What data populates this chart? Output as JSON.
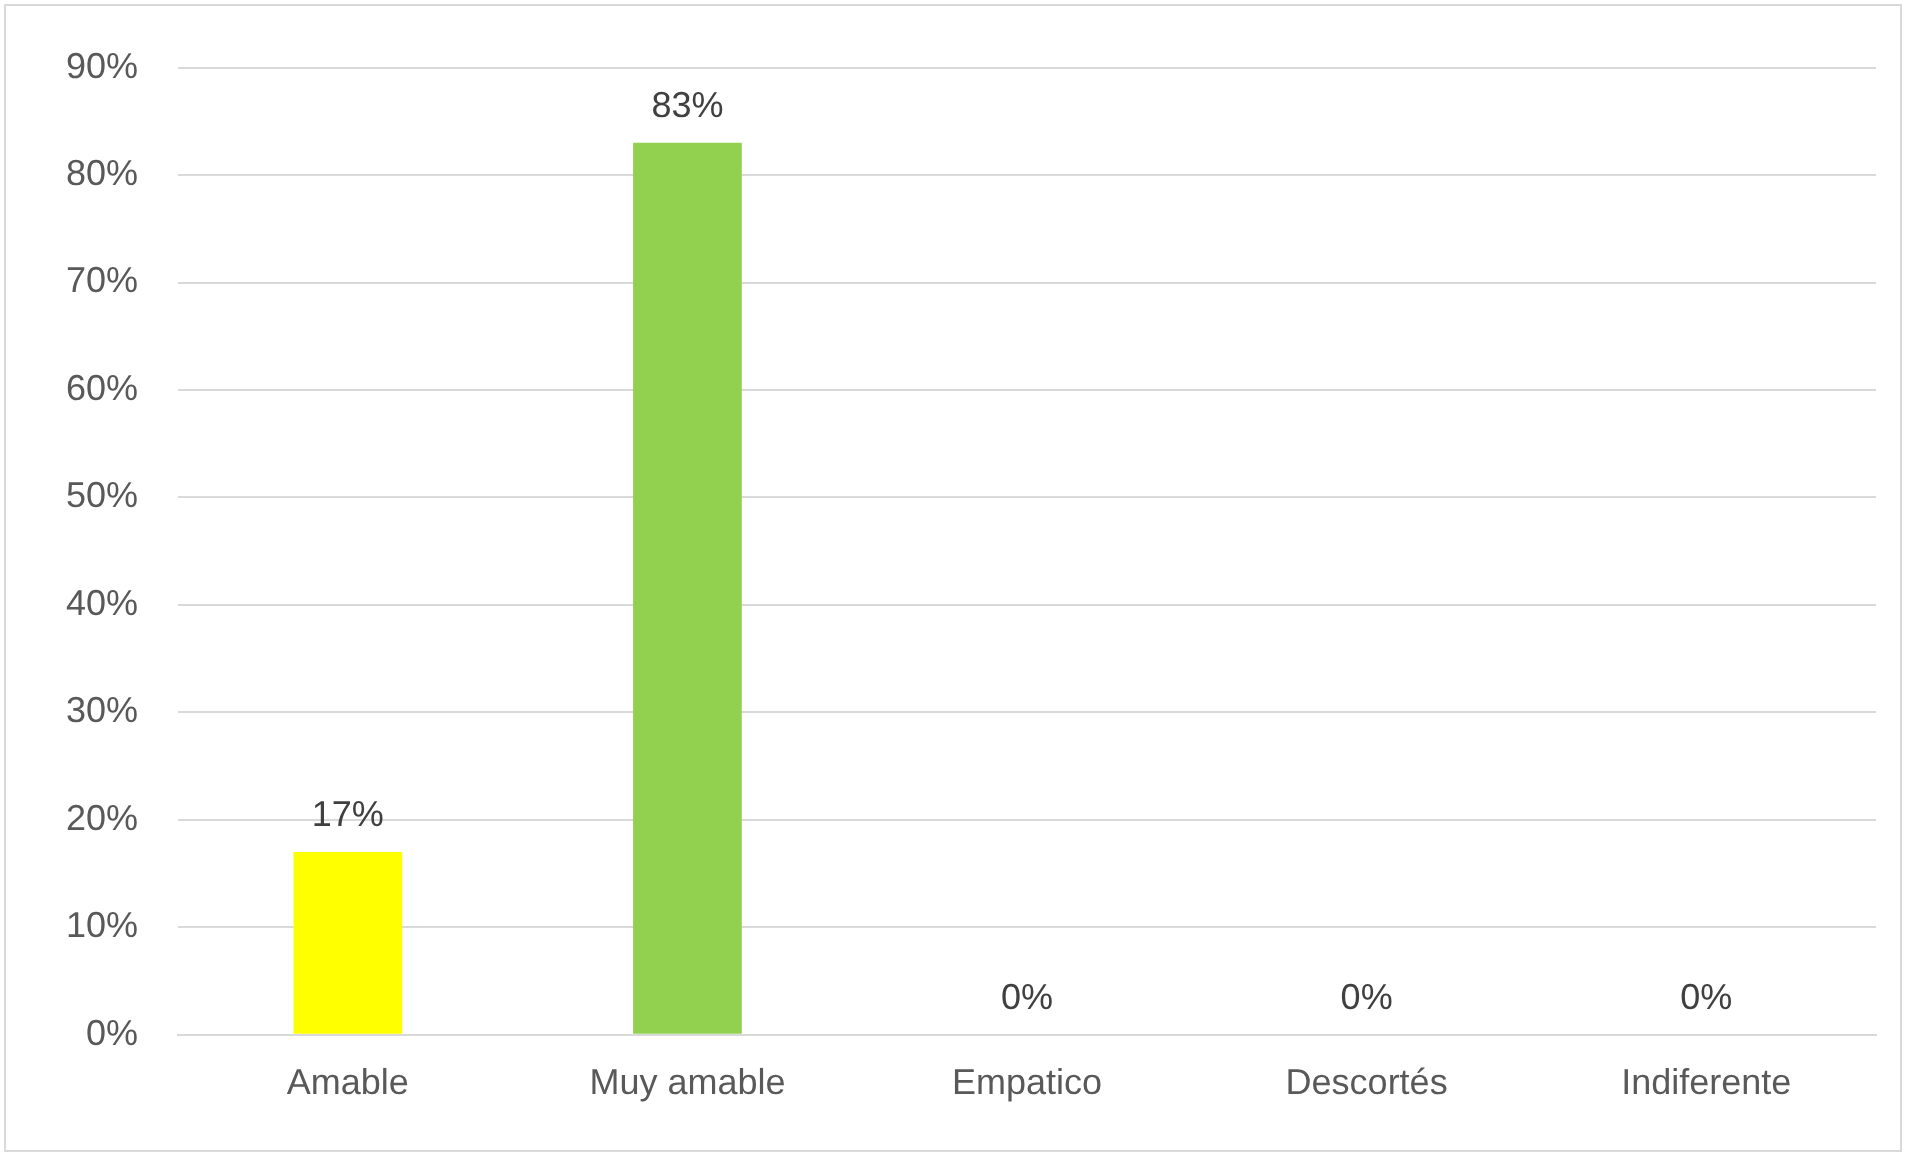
{
  "chart_data": {
    "type": "bar",
    "categories": [
      "Amable",
      "Muy amable",
      "Empatico",
      "Descortés",
      "Indiferente"
    ],
    "values": [
      17,
      83,
      0,
      0,
      0
    ],
    "colors": [
      "#ffff00",
      "#92d050",
      "#92d050",
      "#92d050",
      "#92d050"
    ],
    "value_labels": [
      "17%",
      "83%",
      "0%",
      "0%",
      "0%"
    ],
    "ylim": [
      0,
      90
    ],
    "yticks": [
      {
        "value": 0,
        "label": "0%"
      },
      {
        "value": 10,
        "label": "10%"
      },
      {
        "value": 20,
        "label": "20%"
      },
      {
        "value": 30,
        "label": "30%"
      },
      {
        "value": 40,
        "label": "40%"
      },
      {
        "value": 50,
        "label": "50%"
      },
      {
        "value": 60,
        "label": "60%"
      },
      {
        "value": 70,
        "label": "70%"
      },
      {
        "value": 80,
        "label": "80%"
      },
      {
        "value": 90,
        "label": "90%"
      }
    ],
    "grid": "y",
    "legend": false
  }
}
